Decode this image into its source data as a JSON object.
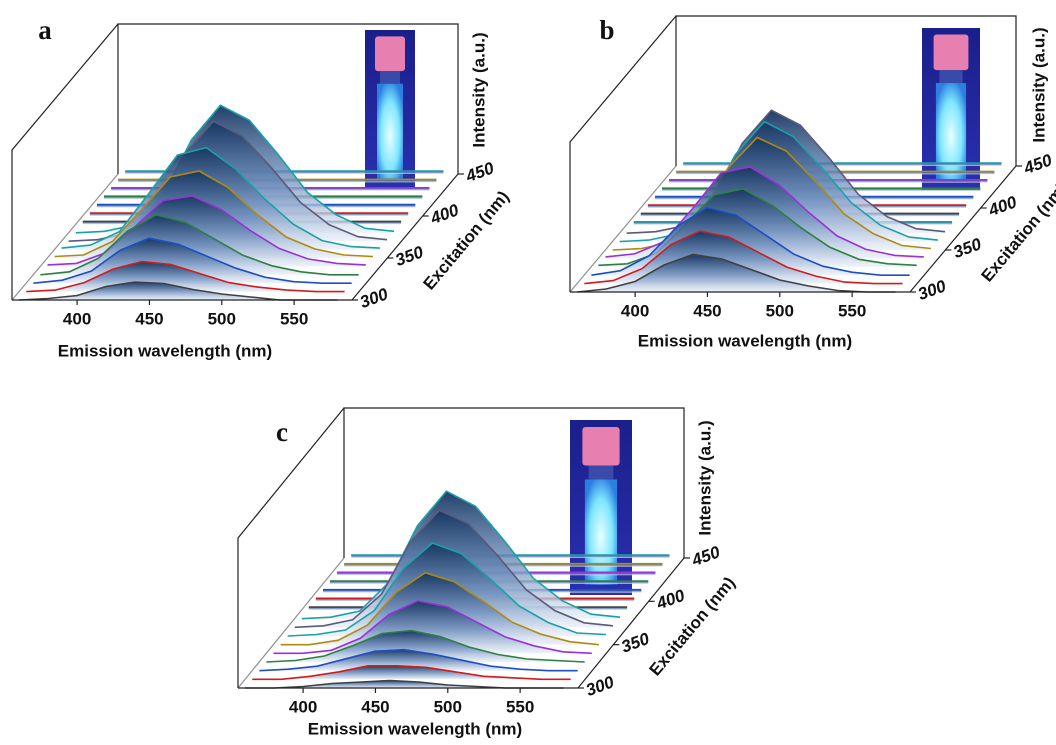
{
  "chart_data": [
    {
      "type": "waterfall",
      "label": "a",
      "xlabel": "Emission wavelength (nm)",
      "zlabel": "Excitation (nm)",
      "ylabel": "Intensity (a.u.)",
      "x": [
        360,
        380,
        400,
        420,
        440,
        460,
        480,
        500,
        520,
        540,
        560,
        580
      ],
      "xlim": [
        355,
        590
      ],
      "xticks": [
        400,
        450,
        500,
        550
      ],
      "zlim": [
        300,
        450
      ],
      "zticks": [
        300,
        350,
        400,
        450
      ],
      "ylim": [
        0,
        1
      ],
      "series": [
        {
          "z": 300,
          "color": "#404040",
          "values": [
            0,
            0.01,
            0.03,
            0.09,
            0.12,
            0.11,
            0.07,
            0.04,
            0.02,
            0,
            0,
            0
          ]
        },
        {
          "z": 310,
          "color": "#d01c1c",
          "values": [
            0,
            0.01,
            0.06,
            0.15,
            0.2,
            0.18,
            0.12,
            0.06,
            0.03,
            0.01,
            0,
            0
          ]
        },
        {
          "z": 320,
          "color": "#1c4fc4",
          "values": [
            0,
            0.02,
            0.08,
            0.22,
            0.3,
            0.26,
            0.18,
            0.1,
            0.04,
            0.01,
            0,
            0
          ]
        },
        {
          "z": 330,
          "color": "#2e8040",
          "values": [
            0,
            0.02,
            0.11,
            0.29,
            0.4,
            0.35,
            0.24,
            0.13,
            0.06,
            0.02,
            0,
            0
          ]
        },
        {
          "z": 340,
          "color": "#9b30d9",
          "values": [
            0.01,
            0.02,
            0.09,
            0.26,
            0.44,
            0.47,
            0.38,
            0.24,
            0.12,
            0.05,
            0.02,
            0.01
          ]
        },
        {
          "z": 350,
          "color": "#b08a10",
          "values": [
            0.01,
            0.02,
            0.11,
            0.32,
            0.54,
            0.58,
            0.47,
            0.29,
            0.14,
            0.06,
            0.02,
            0.01
          ]
        },
        {
          "z": 360,
          "color": "#1aa0a8",
          "values": [
            0.01,
            0.03,
            0.12,
            0.37,
            0.63,
            0.68,
            0.54,
            0.34,
            0.17,
            0.06,
            0.02,
            0.01
          ]
        },
        {
          "z": 370,
          "color": "#5a5a7a",
          "values": [
            0,
            0.01,
            0.05,
            0.22,
            0.58,
            0.8,
            0.7,
            0.49,
            0.26,
            0.11,
            0.03,
            0.01
          ]
        },
        {
          "z": 380,
          "color": "#1aa0a8",
          "values": [
            0,
            0.01,
            0.05,
            0.24,
            0.62,
            0.85,
            0.75,
            0.52,
            0.27,
            0.12,
            0.03,
            0.01
          ]
        },
        {
          "z": 390,
          "color": "#404040",
          "values": [
            0.02,
            0.02,
            0.02,
            0.02,
            0.02,
            0.02,
            0.02,
            0.02,
            0.02,
            0.02,
            0.02,
            0.02
          ]
        },
        {
          "z": 400,
          "color": "#d01c1c",
          "values": [
            0.02,
            0.02,
            0.02,
            0.02,
            0.02,
            0.02,
            0.02,
            0.02,
            0.02,
            0.02,
            0.02,
            0.02
          ]
        },
        {
          "z": 410,
          "color": "#1c4fc4",
          "values": [
            0.02,
            0.02,
            0.02,
            0.02,
            0.02,
            0.02,
            0.02,
            0.02,
            0.02,
            0.02,
            0.02,
            0.02
          ]
        },
        {
          "z": 420,
          "color": "#2e8040",
          "values": [
            0.02,
            0.02,
            0.02,
            0.02,
            0.02,
            0.02,
            0.02,
            0.02,
            0.02,
            0.02,
            0.02,
            0.02
          ]
        },
        {
          "z": 430,
          "color": "#9b30d9",
          "values": [
            0.02,
            0.02,
            0.02,
            0.02,
            0.02,
            0.02,
            0.02,
            0.02,
            0.02,
            0.02,
            0.02,
            0.02
          ]
        },
        {
          "z": 440,
          "color": "#b08a10",
          "values": [
            0.02,
            0.02,
            0.02,
            0.02,
            0.02,
            0.02,
            0.02,
            0.02,
            0.02,
            0.02,
            0.02,
            0.02
          ]
        },
        {
          "z": 450,
          "color": "#1aa0a8",
          "values": [
            0.02,
            0.02,
            0.02,
            0.02,
            0.02,
            0.02,
            0.02,
            0.02,
            0.02,
            0.02,
            0.02,
            0.02
          ]
        }
      ]
    },
    {
      "type": "waterfall",
      "label": "b",
      "xlabel": "Emission wavelength (nm)",
      "zlabel": "Excitation (nm)",
      "ylabel": "Intensity (a.u.)",
      "x": [
        360,
        380,
        400,
        420,
        440,
        460,
        480,
        500,
        520,
        540,
        560,
        580
      ],
      "xlim": [
        355,
        590
      ],
      "xticks": [
        400,
        450,
        500,
        550
      ],
      "zlim": [
        300,
        450
      ],
      "zticks": [
        300,
        350,
        400,
        450
      ],
      "ylim": [
        0,
        1
      ],
      "series": [
        {
          "z": 300,
          "color": "#404040",
          "values": [
            0,
            0.02,
            0.07,
            0.18,
            0.25,
            0.22,
            0.15,
            0.08,
            0.04,
            0.01,
            0,
            0
          ]
        },
        {
          "z": 310,
          "color": "#d01c1c",
          "values": [
            0,
            0.02,
            0.1,
            0.26,
            0.35,
            0.31,
            0.21,
            0.11,
            0.05,
            0.01,
            0,
            0
          ]
        },
        {
          "z": 320,
          "color": "#1c4fc4",
          "values": [
            0,
            0.03,
            0.13,
            0.33,
            0.45,
            0.4,
            0.27,
            0.14,
            0.06,
            0.02,
            0,
            0
          ]
        },
        {
          "z": 330,
          "color": "#2e8040",
          "values": [
            0.01,
            0.02,
            0.09,
            0.28,
            0.48,
            0.52,
            0.41,
            0.26,
            0.13,
            0.05,
            0.02,
            0.01
          ]
        },
        {
          "z": 340,
          "color": "#9b30d9",
          "values": [
            0.01,
            0.03,
            0.11,
            0.33,
            0.57,
            0.61,
            0.49,
            0.31,
            0.15,
            0.06,
            0.02,
            0.01
          ]
        },
        {
          "z": 350,
          "color": "#b08a10",
          "values": [
            0,
            0.01,
            0.05,
            0.21,
            0.55,
            0.75,
            0.66,
            0.46,
            0.24,
            0.11,
            0.03,
            0.01
          ]
        },
        {
          "z": 360,
          "color": "#1aa0a8",
          "values": [
            0,
            0.01,
            0.05,
            0.22,
            0.58,
            0.8,
            0.7,
            0.49,
            0.26,
            0.11,
            0.03,
            0.01
          ]
        },
        {
          "z": 370,
          "color": "#5a5a7a",
          "values": [
            0,
            0.01,
            0.05,
            0.23,
            0.6,
            0.82,
            0.72,
            0.5,
            0.26,
            0.11,
            0.03,
            0.01
          ]
        },
        {
          "z": 380,
          "color": "#1aa0a8",
          "values": [
            0.02,
            0.02,
            0.02,
            0.02,
            0.02,
            0.02,
            0.02,
            0.02,
            0.02,
            0.02,
            0.02,
            0.02
          ]
        },
        {
          "z": 390,
          "color": "#404040",
          "values": [
            0.02,
            0.02,
            0.02,
            0.02,
            0.02,
            0.02,
            0.02,
            0.02,
            0.02,
            0.02,
            0.02,
            0.02
          ]
        },
        {
          "z": 400,
          "color": "#d01c1c",
          "values": [
            0.02,
            0.02,
            0.02,
            0.02,
            0.02,
            0.02,
            0.02,
            0.02,
            0.02,
            0.02,
            0.02,
            0.02
          ]
        },
        {
          "z": 410,
          "color": "#1c4fc4",
          "values": [
            0.02,
            0.02,
            0.02,
            0.02,
            0.02,
            0.02,
            0.02,
            0.02,
            0.02,
            0.02,
            0.02,
            0.02
          ]
        },
        {
          "z": 420,
          "color": "#2e8040",
          "values": [
            0.02,
            0.02,
            0.02,
            0.02,
            0.02,
            0.02,
            0.02,
            0.02,
            0.02,
            0.02,
            0.02,
            0.02
          ]
        },
        {
          "z": 430,
          "color": "#9b30d9",
          "values": [
            0.02,
            0.02,
            0.02,
            0.02,
            0.02,
            0.02,
            0.02,
            0.02,
            0.02,
            0.02,
            0.02,
            0.02
          ]
        },
        {
          "z": 440,
          "color": "#b08a10",
          "values": [
            0.02,
            0.02,
            0.02,
            0.02,
            0.02,
            0.02,
            0.02,
            0.02,
            0.02,
            0.02,
            0.02,
            0.02
          ]
        },
        {
          "z": 450,
          "color": "#1aa0a8",
          "values": [
            0.02,
            0.02,
            0.02,
            0.02,
            0.02,
            0.02,
            0.02,
            0.02,
            0.02,
            0.02,
            0.02,
            0.02
          ]
        }
      ]
    },
    {
      "type": "waterfall",
      "label": "c",
      "xlabel": "Emission wavelength (nm)",
      "zlabel": "Excitation (nm)",
      "ylabel": "Intensity (a.u.)",
      "x": [
        360,
        380,
        400,
        420,
        440,
        460,
        480,
        500,
        520,
        540,
        560,
        580
      ],
      "xlim": [
        355,
        590
      ],
      "xticks": [
        400,
        450,
        500,
        550
      ],
      "zlim": [
        300,
        450
      ],
      "zticks": [
        300,
        350,
        400,
        450
      ],
      "ylim": [
        0,
        1
      ],
      "series": [
        {
          "z": 300,
          "color": "#404040",
          "values": [
            0,
            0,
            0.01,
            0.03,
            0.04,
            0.05,
            0.04,
            0.02,
            0.01,
            0,
            0,
            0
          ]
        },
        {
          "z": 310,
          "color": "#d01c1c",
          "values": [
            0,
            0,
            0.02,
            0.05,
            0.09,
            0.09,
            0.08,
            0.05,
            0.02,
            0.01,
            0,
            0
          ]
        },
        {
          "z": 320,
          "color": "#1c4fc4",
          "values": [
            0,
            0.01,
            0.03,
            0.08,
            0.13,
            0.14,
            0.11,
            0.07,
            0.03,
            0.01,
            0,
            0
          ]
        },
        {
          "z": 330,
          "color": "#2e8040",
          "values": [
            0,
            0.01,
            0.04,
            0.11,
            0.19,
            0.21,
            0.17,
            0.1,
            0.05,
            0.02,
            0.01,
            0
          ]
        },
        {
          "z": 340,
          "color": "#9b30d9",
          "values": [
            0,
            0,
            0.02,
            0.1,
            0.26,
            0.35,
            0.31,
            0.21,
            0.11,
            0.05,
            0.01,
            0
          ]
        },
        {
          "z": 350,
          "color": "#b08a10",
          "values": [
            0,
            0,
            0.03,
            0.13,
            0.35,
            0.48,
            0.42,
            0.29,
            0.15,
            0.07,
            0.02,
            0
          ]
        },
        {
          "z": 360,
          "color": "#1aa0a8",
          "values": [
            0,
            0.01,
            0.04,
            0.17,
            0.45,
            0.62,
            0.55,
            0.38,
            0.2,
            0.09,
            0.02,
            0.01
          ]
        },
        {
          "z": 370,
          "color": "#5a5a7a",
          "values": [
            0,
            0.01,
            0.05,
            0.22,
            0.57,
            0.78,
            0.69,
            0.48,
            0.25,
            0.11,
            0.03,
            0.01
          ]
        },
        {
          "z": 380,
          "color": "#1aa0a8",
          "values": [
            0,
            0.01,
            0.05,
            0.24,
            0.62,
            0.85,
            0.75,
            0.52,
            0.27,
            0.12,
            0.03,
            0.01
          ]
        },
        {
          "z": 390,
          "color": "#404040",
          "values": [
            0.02,
            0.02,
            0.02,
            0.02,
            0.02,
            0.02,
            0.02,
            0.02,
            0.02,
            0.02,
            0.02,
            0.02
          ]
        },
        {
          "z": 400,
          "color": "#d01c1c",
          "values": [
            0.02,
            0.02,
            0.02,
            0.02,
            0.02,
            0.02,
            0.02,
            0.02,
            0.02,
            0.02,
            0.02,
            0.02
          ]
        },
        {
          "z": 410,
          "color": "#1c4fc4",
          "values": [
            0.02,
            0.02,
            0.02,
            0.02,
            0.02,
            0.02,
            0.02,
            0.02,
            0.02,
            0.02,
            0.02,
            0.02
          ]
        },
        {
          "z": 420,
          "color": "#2e8040",
          "values": [
            0.02,
            0.02,
            0.02,
            0.02,
            0.02,
            0.02,
            0.02,
            0.02,
            0.02,
            0.02,
            0.02,
            0.02
          ]
        },
        {
          "z": 430,
          "color": "#9b30d9",
          "values": [
            0.02,
            0.02,
            0.02,
            0.02,
            0.02,
            0.02,
            0.02,
            0.02,
            0.02,
            0.02,
            0.02,
            0.02
          ]
        },
        {
          "z": 440,
          "color": "#b08a10",
          "values": [
            0.02,
            0.02,
            0.02,
            0.02,
            0.02,
            0.02,
            0.02,
            0.02,
            0.02,
            0.02,
            0.02,
            0.02
          ]
        },
        {
          "z": 450,
          "color": "#1aa0a8",
          "values": [
            0.02,
            0.02,
            0.02,
            0.02,
            0.02,
            0.02,
            0.02,
            0.02,
            0.02,
            0.02,
            0.02,
            0.02
          ]
        }
      ]
    }
  ]
}
